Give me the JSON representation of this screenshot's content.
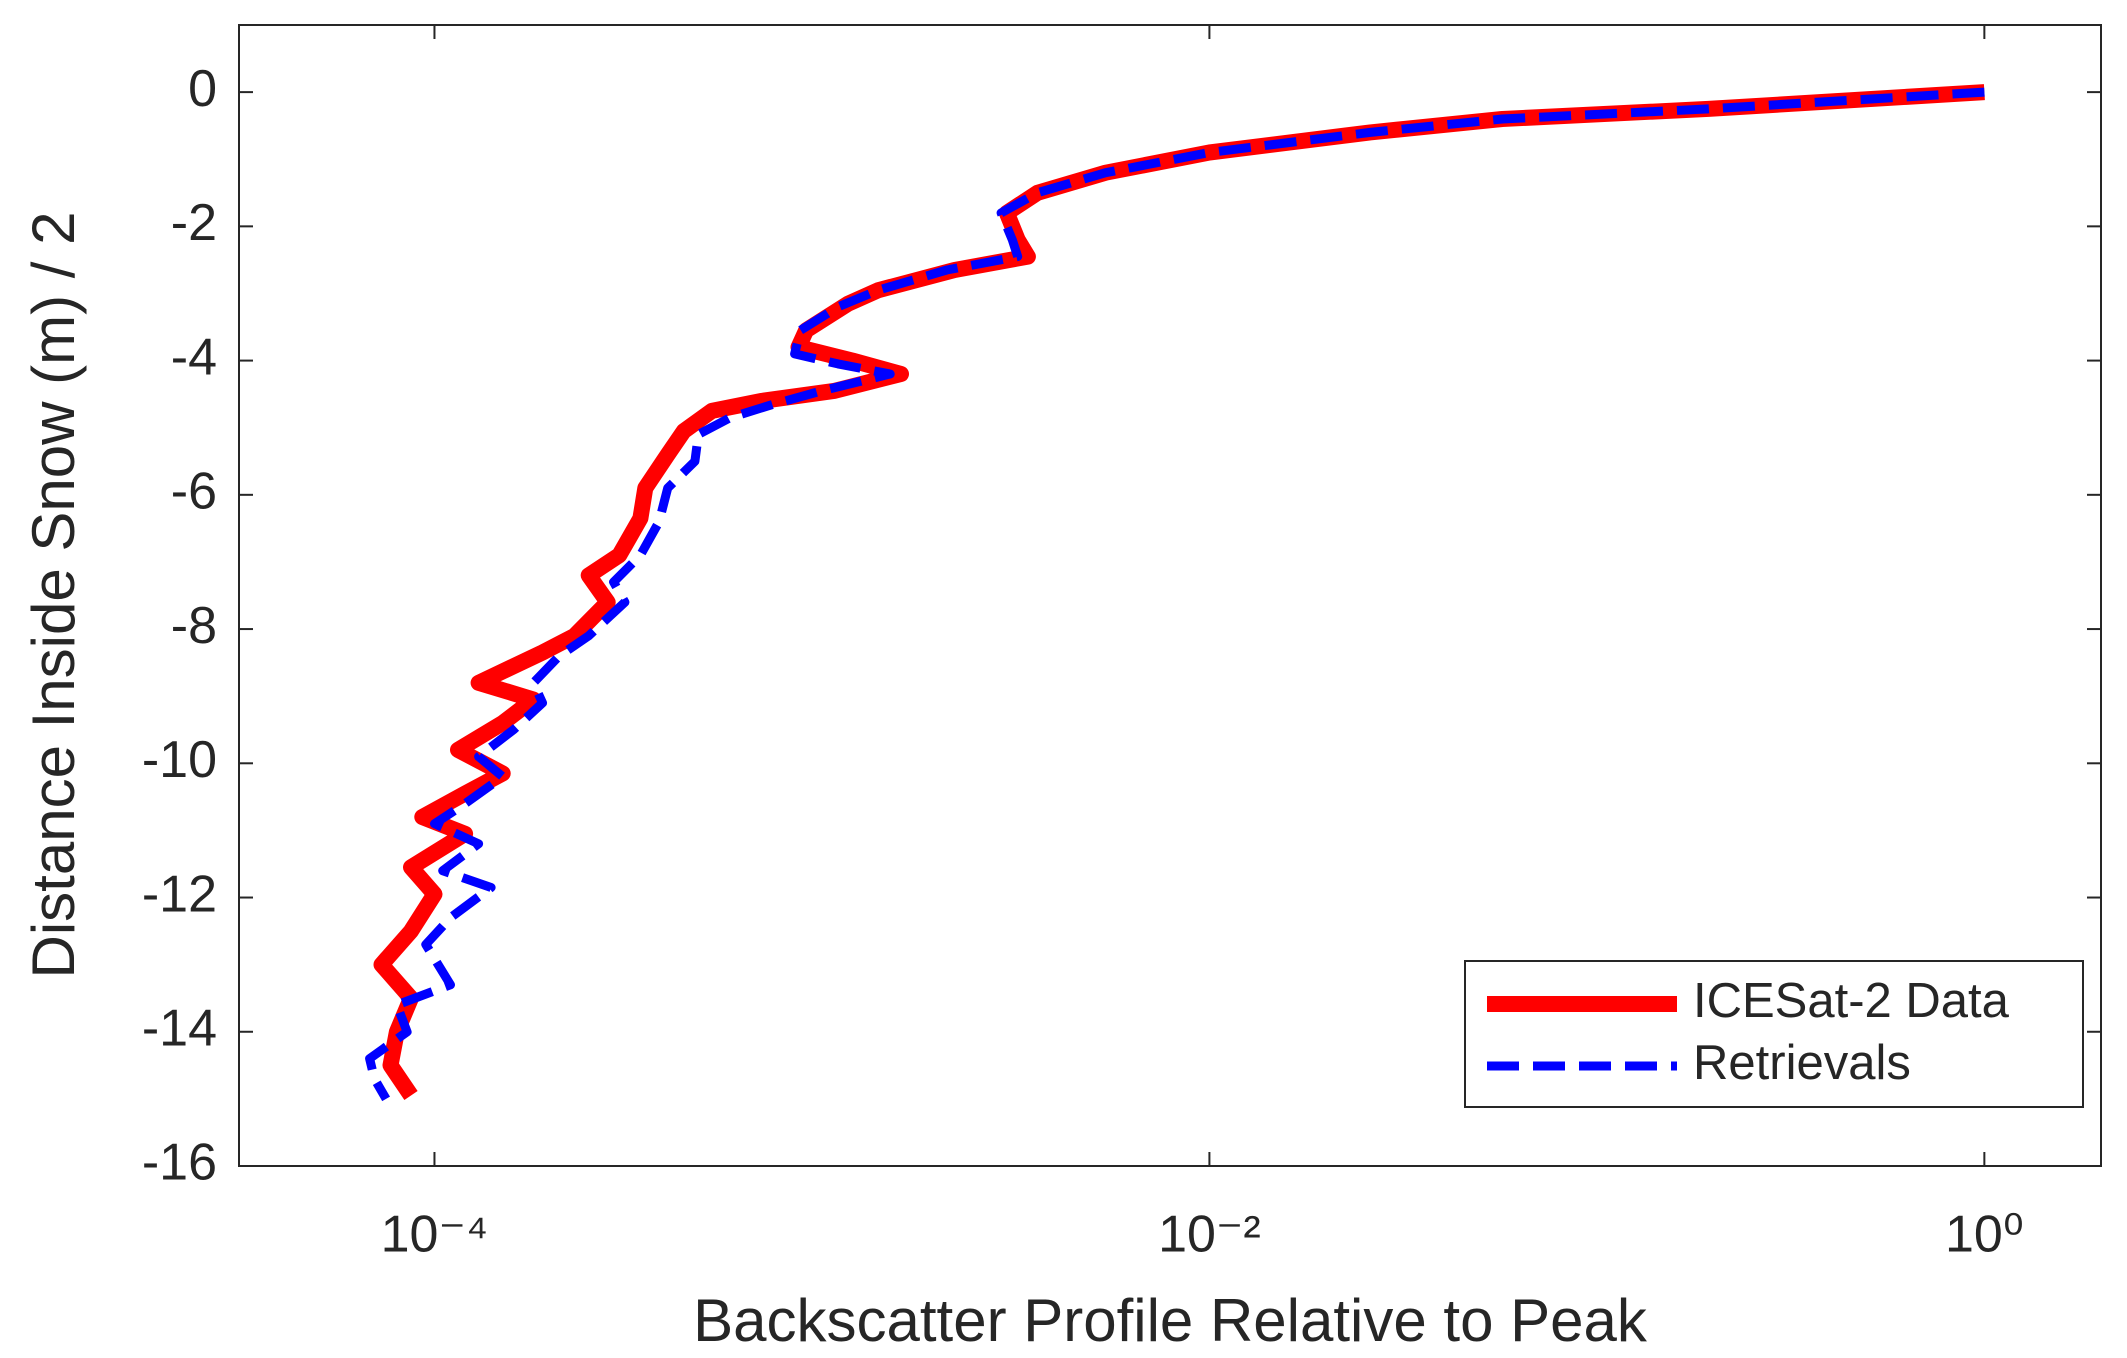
{
  "chart_data": {
    "type": "line",
    "xlabel": "Backscatter Profile Relative to Peak",
    "ylabel": "Distance Inside Snow (m) / 2",
    "xscale": "log",
    "xlim": [
      3.13e-05,
      2
    ],
    "ylim": [
      -16,
      1
    ],
    "xticks": [
      {
        "value": 0.0001,
        "label": "10⁻⁴"
      },
      {
        "value": 0.01,
        "label": "10⁻²"
      },
      {
        "value": 1,
        "label": "10⁰"
      }
    ],
    "yticks": [
      0,
      -2,
      -4,
      -6,
      -8,
      -10,
      -12,
      -14,
      -16
    ],
    "legend": "lower right",
    "series": [
      {
        "name": "ICESat-2 Data",
        "color": "#ff0000",
        "linestyle": "solid",
        "x": [
          1,
          0.194,
          0.057,
          0.026,
          0.01,
          0.0054,
          0.0036,
          0.003,
          0.0032,
          0.0034,
          0.0022,
          0.0014,
          0.00117,
          0.00091,
          0.00087,
          0.0012,
          0.0016,
          0.00108,
          0.0007,
          0.00052,
          0.00044,
          0.0004,
          0.00035,
          0.00034,
          0.0003,
          0.00025,
          0.00028,
          0.00023,
          0.00019,
          0.00013,
          0.00018,
          0.00015,
          0.000115,
          0.00015,
          0.00012,
          9.3e-05,
          0.00012,
          8.7e-05,
          0.0001,
          8.7e-05,
          7.3e-05,
          8.7e-05,
          8e-05,
          7.7e-05,
          8.7e-05
        ],
        "values": [
          0,
          -0.25,
          -0.4,
          -0.6,
          -0.9,
          -1.2,
          -1.5,
          -1.8,
          -2.2,
          -2.45,
          -2.65,
          -2.95,
          -3.15,
          -3.55,
          -3.8,
          -4.0,
          -4.2,
          -4.45,
          -4.6,
          -4.75,
          -5.05,
          -5.4,
          -5.9,
          -6.35,
          -6.9,
          -7.2,
          -7.6,
          -8.1,
          -8.35,
          -8.8,
          -9.05,
          -9.4,
          -9.8,
          -10.15,
          -10.45,
          -10.8,
          -11.05,
          -11.55,
          -11.95,
          -12.5,
          -13,
          -13.5,
          -14,
          -14.5,
          -14.95
        ]
      },
      {
        "name": "Retrievals",
        "color": "#0000ff",
        "linestyle": "dashed",
        "x": [
          1,
          0.194,
          0.057,
          0.026,
          0.01,
          0.0054,
          0.0036,
          0.0029,
          0.0031,
          0.0032,
          0.0021,
          0.0014,
          0.0011,
          0.00088,
          0.00085,
          0.0011,
          0.0015,
          0.001,
          0.00075,
          0.00058,
          0.00048,
          0.00047,
          0.0004,
          0.00038,
          0.00034,
          0.00029,
          0.00031,
          0.00025,
          0.00021,
          0.00018,
          0.00019,
          0.00016,
          0.00013,
          0.00015,
          0.00012,
          0.0001,
          0.00013,
          0.000105,
          0.00014,
          0.00011,
          9.5e-05,
          0.00011,
          8e-05,
          8.5e-05,
          6.8e-05,
          7e-05,
          7.5e-05
        ],
        "values": [
          0,
          -0.25,
          -0.4,
          -0.6,
          -0.9,
          -1.2,
          -1.5,
          -1.8,
          -2.2,
          -2.45,
          -2.65,
          -2.95,
          -3.2,
          -3.55,
          -3.9,
          -4.05,
          -4.2,
          -4.45,
          -4.65,
          -4.85,
          -5.1,
          -5.5,
          -5.9,
          -6.4,
          -6.9,
          -7.3,
          -7.6,
          -8.1,
          -8.4,
          -8.8,
          -9.1,
          -9.5,
          -9.9,
          -10.2,
          -10.6,
          -10.9,
          -11.2,
          -11.6,
          -11.85,
          -12.3,
          -12.7,
          -13.3,
          -13.6,
          -14,
          -14.4,
          -14.7,
          -15
        ]
      }
    ]
  }
}
